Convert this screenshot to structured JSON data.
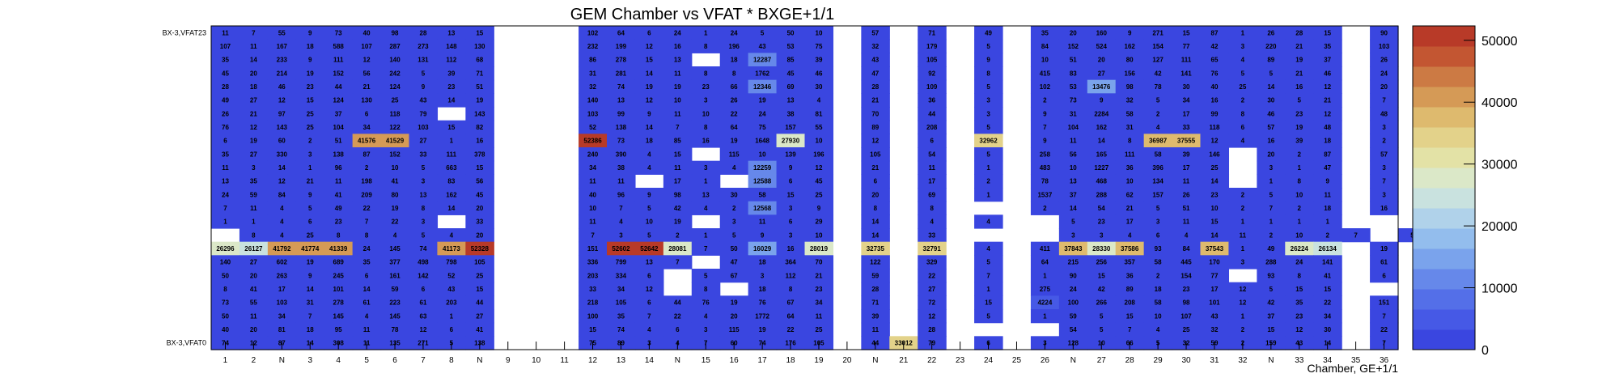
{
  "chart_data": {
    "type": "heatmap",
    "title": "GEM Chamber vs VFAT * BXGE+1/1",
    "xlabel": "Chamber, GE+1/1",
    "ylabel": "",
    "x_tick_labels": [
      "1",
      "2",
      "N",
      "3",
      "4",
      "5",
      "6",
      "7",
      "8",
      "N",
      "9",
      "10",
      "11",
      "12",
      "13",
      "14",
      "N",
      "15",
      "16",
      "17",
      "18",
      "19",
      "20",
      "N",
      "21",
      "22",
      "23",
      "24",
      "25",
      "26",
      "N",
      "27",
      "28",
      "29",
      "30",
      "31",
      "32",
      "N",
      "33",
      "34",
      "35",
      "36"
    ],
    "y_tick_labels": [
      "BX-3,VFAT0",
      "BX-3,VFAT23"
    ],
    "z_range": [
      0,
      52328
    ],
    "z_ticks": [
      "0",
      "10000",
      "20000",
      "30000",
      "40000",
      "50000"
    ],
    "colors": {
      "low": "#3a46e0",
      "palette": [
        "#3a46e0",
        "#4659e6",
        "#546fe8",
        "#6688ea",
        "#7aa3ec",
        "#93bded",
        "#b0d2ea",
        "#c9e2df",
        "#dbe8c8",
        "#e3e2a6",
        "#e3d28a",
        "#deba6e",
        "#d59a56",
        "#cc7a44",
        "#c35632",
        "#b83a28"
      ]
    },
    "rows_top_to_bottom": [
      [
        "11",
        "7",
        "55",
        "9",
        "73",
        "40",
        "98",
        "28",
        "13",
        "15",
        "",
        "",
        "",
        "102",
        "64",
        "6",
        "24",
        "1",
        "24",
        "5",
        "50",
        "10",
        "",
        "57",
        "",
        "71",
        "",
        "49",
        "",
        "35",
        "20",
        "160",
        "9",
        "271",
        "15",
        "87",
        "1",
        "26",
        "28",
        "15",
        "",
        "90"
      ],
      [
        "107",
        "11",
        "167",
        "18",
        "588",
        "107",
        "287",
        "273",
        "148",
        "130",
        "",
        "",
        "",
        "232",
        "199",
        "12",
        "16",
        "8",
        "196",
        "43",
        "53",
        "75",
        "",
        "32",
        "",
        "179",
        "",
        "5",
        "",
        "84",
        "152",
        "524",
        "162",
        "154",
        "77",
        "42",
        "3",
        "220",
        "21",
        "35",
        "",
        "103"
      ],
      [
        "35",
        "14",
        "233",
        "9",
        "111",
        "12",
        "140",
        "131",
        "112",
        "68",
        "",
        "",
        "",
        "86",
        "278",
        "15",
        "13",
        "",
        "18",
        "12287",
        "85",
        "39",
        "",
        "43",
        "",
        "105",
        "",
        "9",
        "",
        "10",
        "51",
        "20",
        "80",
        "127",
        "111",
        "65",
        "4",
        "89",
        "19",
        "37",
        "",
        "26"
      ],
      [
        "45",
        "20",
        "214",
        "19",
        "152",
        "56",
        "242",
        "5",
        "39",
        "71",
        "",
        "",
        "",
        "31",
        "281",
        "14",
        "11",
        "8",
        "8",
        "1762",
        "45",
        "46",
        "",
        "47",
        "",
        "92",
        "",
        "8",
        "",
        "415",
        "83",
        "27",
        "156",
        "42",
        "141",
        "76",
        "5",
        "5",
        "21",
        "46",
        "",
        "24"
      ],
      [
        "28",
        "18",
        "46",
        "23",
        "44",
        "21",
        "124",
        "9",
        "23",
        "51",
        "",
        "",
        "",
        "32",
        "74",
        "19",
        "19",
        "23",
        "66",
        "12346",
        "69",
        "30",
        "",
        "28",
        "",
        "109",
        "",
        "5",
        "",
        "102",
        "53",
        "13476",
        "98",
        "78",
        "30",
        "40",
        "25",
        "14",
        "16",
        "12",
        "",
        "20"
      ],
      [
        "49",
        "27",
        "12",
        "15",
        "124",
        "130",
        "25",
        "43",
        "14",
        "19",
        "",
        "",
        "",
        "140",
        "13",
        "12",
        "10",
        "3",
        "26",
        "19",
        "13",
        "4",
        "",
        "21",
        "",
        "36",
        "",
        "3",
        "",
        "2",
        "73",
        "9",
        "32",
        "5",
        "34",
        "16",
        "2",
        "30",
        "5",
        "21",
        "",
        "7"
      ],
      [
        "26",
        "21",
        "97",
        "25",
        "37",
        "6",
        "118",
        "79",
        "",
        "143",
        "",
        "",
        "",
        "103",
        "99",
        "9",
        "11",
        "10",
        "22",
        "24",
        "38",
        "81",
        "",
        "70",
        "",
        "44",
        "",
        "3",
        "",
        "9",
        "31",
        "2284",
        "58",
        "2",
        "17",
        "99",
        "8",
        "46",
        "23",
        "12",
        "",
        "48"
      ],
      [
        "76",
        "12",
        "143",
        "25",
        "104",
        "34",
        "122",
        "103",
        "15",
        "82",
        "",
        "",
        "",
        "52",
        "138",
        "14",
        "7",
        "8",
        "64",
        "75",
        "157",
        "55",
        "",
        "89",
        "",
        "208",
        "",
        "5",
        "",
        "7",
        "104",
        "162",
        "31",
        "4",
        "33",
        "118",
        "6",
        "57",
        "19",
        "48",
        "",
        "3"
      ],
      [
        "6",
        "19",
        "60",
        "2",
        "51",
        "41576",
        "41529",
        "27",
        "1",
        "16",
        "",
        "",
        "",
        "52386",
        "73",
        "18",
        "85",
        "16",
        "19",
        "1648",
        "27930",
        "10",
        "",
        "12",
        "",
        "6",
        "",
        "32962",
        "",
        "9",
        "11",
        "14",
        "8",
        "36987",
        "37555",
        "12",
        "4",
        "16",
        "39",
        "18",
        "",
        "2"
      ],
      [
        "35",
        "27",
        "330",
        "3",
        "138",
        "87",
        "152",
        "33",
        "111",
        "378",
        "",
        "",
        "",
        "240",
        "390",
        "4",
        "15",
        "",
        "115",
        "10",
        "139",
        "196",
        "",
        "105",
        "",
        "54",
        "",
        "5",
        "",
        "258",
        "56",
        "165",
        "111",
        "58",
        "39",
        "146",
        "",
        "20",
        "2",
        "87",
        "",
        "57"
      ],
      [
        "11",
        "3",
        "14",
        "1",
        "96",
        "2",
        "10",
        "5",
        "663",
        "15",
        "",
        "",
        "",
        "34",
        "38",
        "4",
        "11",
        "3",
        "4",
        "12259",
        "9",
        "12",
        "",
        "21",
        "",
        "11",
        "",
        "1",
        "",
        "483",
        "10",
        "1227",
        "36",
        "396",
        "17",
        "25",
        "",
        "3",
        "1",
        "47",
        "",
        "3"
      ],
      [
        "13",
        "35",
        "12",
        "21",
        "11",
        "198",
        "41",
        "3",
        "83",
        "56",
        "",
        "",
        "",
        "11",
        "11",
        "",
        "17",
        "1",
        "",
        "12588",
        "6",
        "45",
        "",
        "6",
        "",
        "17",
        "",
        "2",
        "",
        "78",
        "13",
        "468",
        "10",
        "134",
        "11",
        "14",
        "",
        "1",
        "8",
        "9",
        "",
        "7"
      ],
      [
        "24",
        "59",
        "84",
        "9",
        "41",
        "209",
        "80",
        "13",
        "162",
        "45",
        "",
        "",
        "",
        "40",
        "96",
        "9",
        "98",
        "13",
        "30",
        "58",
        "15",
        "25",
        "",
        "20",
        "",
        "69",
        "",
        "1",
        "",
        "1537",
        "37",
        "288",
        "62",
        "157",
        "26",
        "23",
        "2",
        "5",
        "10",
        "11",
        "",
        "3"
      ],
      [
        "7",
        "11",
        "4",
        "5",
        "49",
        "22",
        "19",
        "8",
        "14",
        "20",
        "",
        "",
        "",
        "10",
        "7",
        "5",
        "42",
        "4",
        "2",
        "12568",
        "3",
        "9",
        "",
        "8",
        "",
        "8",
        "",
        "",
        "",
        "2",
        "14",
        "54",
        "21",
        "5",
        "51",
        "10",
        "2",
        "7",
        "2",
        "18",
        "",
        "16"
      ],
      [
        "1",
        "1",
        "4",
        "6",
        "23",
        "7",
        "22",
        "3",
        "",
        "33",
        "",
        "",
        "",
        "11",
        "4",
        "10",
        "19",
        "",
        "3",
        "11",
        "6",
        "29",
        "",
        "14",
        "",
        "4",
        "",
        "4",
        "",
        "",
        "5",
        "23",
        "17",
        "3",
        "11",
        "15",
        "1",
        "1",
        "1",
        "1",
        "",
        ""
      ],
      [
        "",
        "8",
        "4",
        "25",
        "8",
        "8",
        "4",
        "5",
        "4",
        "20",
        "",
        "",
        "",
        "7",
        "3",
        "5",
        "2",
        "1",
        "5",
        "9",
        "3",
        "10",
        "",
        "14",
        "",
        "33",
        "",
        "",
        "",
        "",
        "3",
        "3",
        "4",
        "6",
        "4",
        "14",
        "11",
        "2",
        "10",
        "2",
        "7",
        "",
        "5"
      ],
      [
        "26296",
        "26127",
        "41792",
        "41774",
        "41339",
        "24",
        "145",
        "74",
        "41173",
        "52328",
        "",
        "",
        "",
        "151",
        "52602",
        "52642",
        "28081",
        "7",
        "50",
        "16029",
        "16",
        "28019",
        "",
        "32735",
        "",
        "32791",
        "",
        "4",
        "",
        "411",
        "37843",
        "28330",
        "37586",
        "93",
        "84",
        "37543",
        "1",
        "49",
        "26224",
        "26134",
        "",
        "19"
      ],
      [
        "140",
        "27",
        "602",
        "19",
        "689",
        "35",
        "377",
        "498",
        "798",
        "105",
        "",
        "",
        "",
        "336",
        "799",
        "13",
        "7",
        "",
        "47",
        "18",
        "364",
        "70",
        "",
        "122",
        "",
        "329",
        "",
        "5",
        "",
        "64",
        "215",
        "256",
        "357",
        "58",
        "445",
        "170",
        "3",
        "288",
        "24",
        "141",
        "",
        "61"
      ],
      [
        "50",
        "20",
        "263",
        "9",
        "245",
        "6",
        "161",
        "142",
        "52",
        "25",
        "",
        "",
        "",
        "203",
        "334",
        "6",
        "",
        "5",
        "67",
        "3",
        "112",
        "21",
        "",
        "59",
        "",
        "22",
        "",
        "7",
        "",
        "1",
        "90",
        "15",
        "36",
        "2",
        "154",
        "77",
        "",
        "93",
        "8",
        "41",
        "",
        "6"
      ],
      [
        "8",
        "41",
        "17",
        "14",
        "101",
        "14",
        "59",
        "6",
        "43",
        "15",
        "",
        "",
        "",
        "33",
        "34",
        "12",
        "",
        "8",
        "",
        "18",
        "8",
        "23",
        "",
        "28",
        "",
        "27",
        "",
        "1",
        "",
        "275",
        "24",
        "42",
        "89",
        "18",
        "23",
        "17",
        "12",
        "5",
        "15",
        "15",
        "",
        ""
      ],
      [
        "73",
        "55",
        "103",
        "31",
        "278",
        "61",
        "223",
        "61",
        "203",
        "44",
        "",
        "",
        "",
        "218",
        "105",
        "6",
        "44",
        "76",
        "19",
        "76",
        "67",
        "34",
        "",
        "71",
        "",
        "72",
        "",
        "15",
        "",
        "4224",
        "100",
        "266",
        "208",
        "58",
        "98",
        "101",
        "12",
        "42",
        "35",
        "22",
        "",
        "151"
      ],
      [
        "50",
        "11",
        "34",
        "7",
        "145",
        "4",
        "145",
        "63",
        "1",
        "27",
        "",
        "",
        "",
        "100",
        "35",
        "7",
        "22",
        "4",
        "20",
        "1772",
        "64",
        "11",
        "",
        "39",
        "",
        "12",
        "",
        "5",
        "",
        "1",
        "59",
        "5",
        "15",
        "10",
        "107",
        "43",
        "1",
        "37",
        "23",
        "34",
        "",
        "7"
      ],
      [
        "40",
        "20",
        "81",
        "18",
        "95",
        "11",
        "78",
        "12",
        "6",
        "41",
        "",
        "",
        "",
        "15",
        "74",
        "4",
        "6",
        "3",
        "115",
        "19",
        "22",
        "25",
        "",
        "11",
        "",
        "28",
        "",
        "",
        "",
        "",
        "54",
        "5",
        "7",
        "4",
        "25",
        "32",
        "2",
        "15",
        "12",
        "30",
        "",
        "22"
      ],
      [
        "74",
        "12",
        "87",
        "14",
        "308",
        "11",
        "135",
        "271",
        "5",
        "138",
        "",
        "",
        "",
        "75",
        "89",
        "3",
        "4",
        "7",
        "60",
        "74",
        "176",
        "105",
        "",
        "44",
        "33012",
        "79",
        "",
        "6",
        "",
        "3",
        "128",
        "10",
        "66",
        "5",
        "32",
        "59",
        "2",
        "159",
        "43",
        "14",
        "",
        "7"
      ]
    ]
  }
}
